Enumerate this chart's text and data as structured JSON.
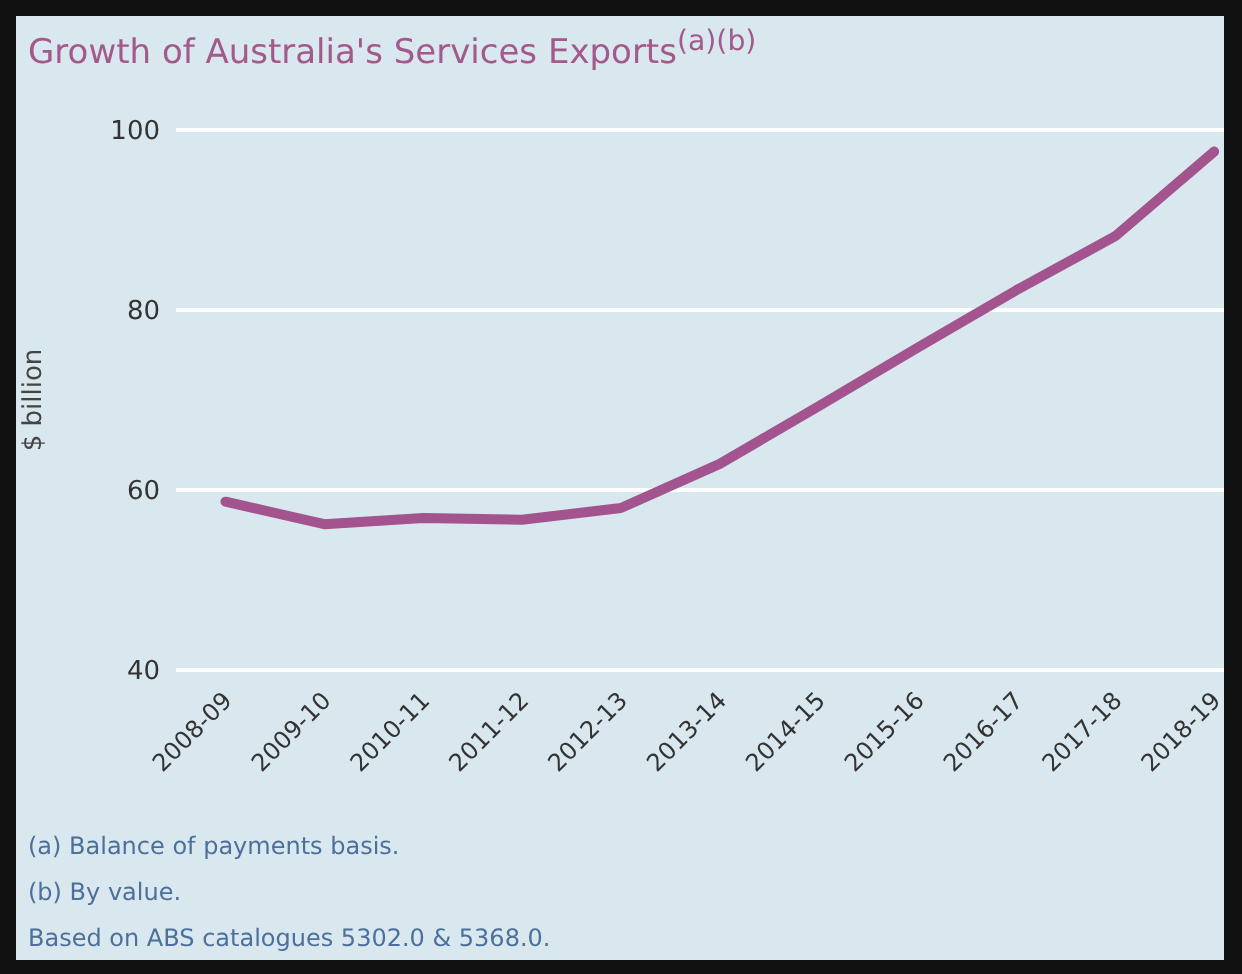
{
  "chart_data": {
    "type": "line",
    "title": "Growth of Australia's Services Exports$^{(a)(b)}$",
    "ylabel": "$ billion",
    "categories": [
      "2008-09",
      "2009-10",
      "2010-11",
      "2011-12",
      "2012-13",
      "2013-14",
      "2014-15",
      "2015-16",
      "2016-17",
      "2017-18",
      "2018-19"
    ],
    "series": [
      {
        "color": "#a3548f",
        "values": [
          58.7,
          56.2,
          56.9,
          56.7,
          58.0,
          62.9,
          69.3,
          75.8,
          82.2,
          88.2,
          97.6
        ]
      }
    ],
    "ylim": [
      40,
      100
    ],
    "yticks": [
      40,
      60,
      80,
      100
    ],
    "grid": "y",
    "marker": "none",
    "annotations": [
      "(a) Balance of payments basis.",
      "(b) By value.",
      "Based on ABS catalogues 5302.0 & 5368.0."
    ]
  }
}
